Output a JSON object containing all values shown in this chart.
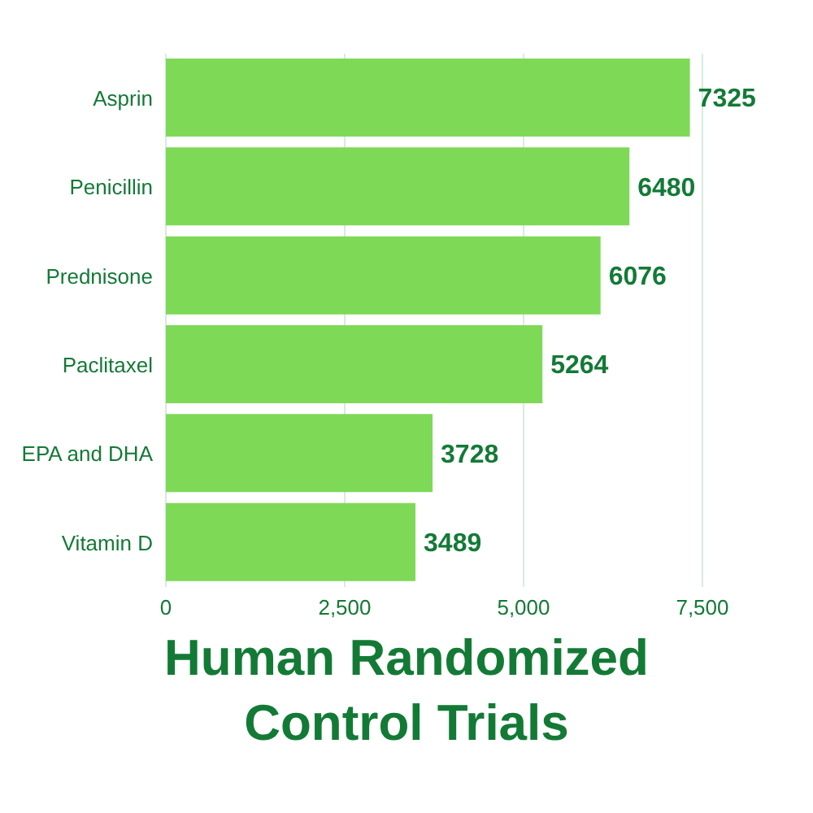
{
  "chart_data": {
    "type": "bar",
    "orientation": "horizontal",
    "title": "Human Randomized Control Trials",
    "categories": [
      "Asprin",
      "Penicillin",
      "Prednisone",
      "Paclitaxel",
      "EPA and DHA",
      "Vitamin D"
    ],
    "values": [
      7325,
      6480,
      6076,
      5264,
      3728,
      3489
    ],
    "color": "#7ed957",
    "data_labels": true,
    "xlim": [
      0,
      7500
    ],
    "xticks": [
      0,
      {
        "value": 2500,
        "label": "2,500"
      },
      {
        "value": 5000,
        "label": "5,000"
      },
      {
        "value": 7500,
        "label": "7,500"
      }
    ],
    "grid": "x",
    "legend": false
  }
}
